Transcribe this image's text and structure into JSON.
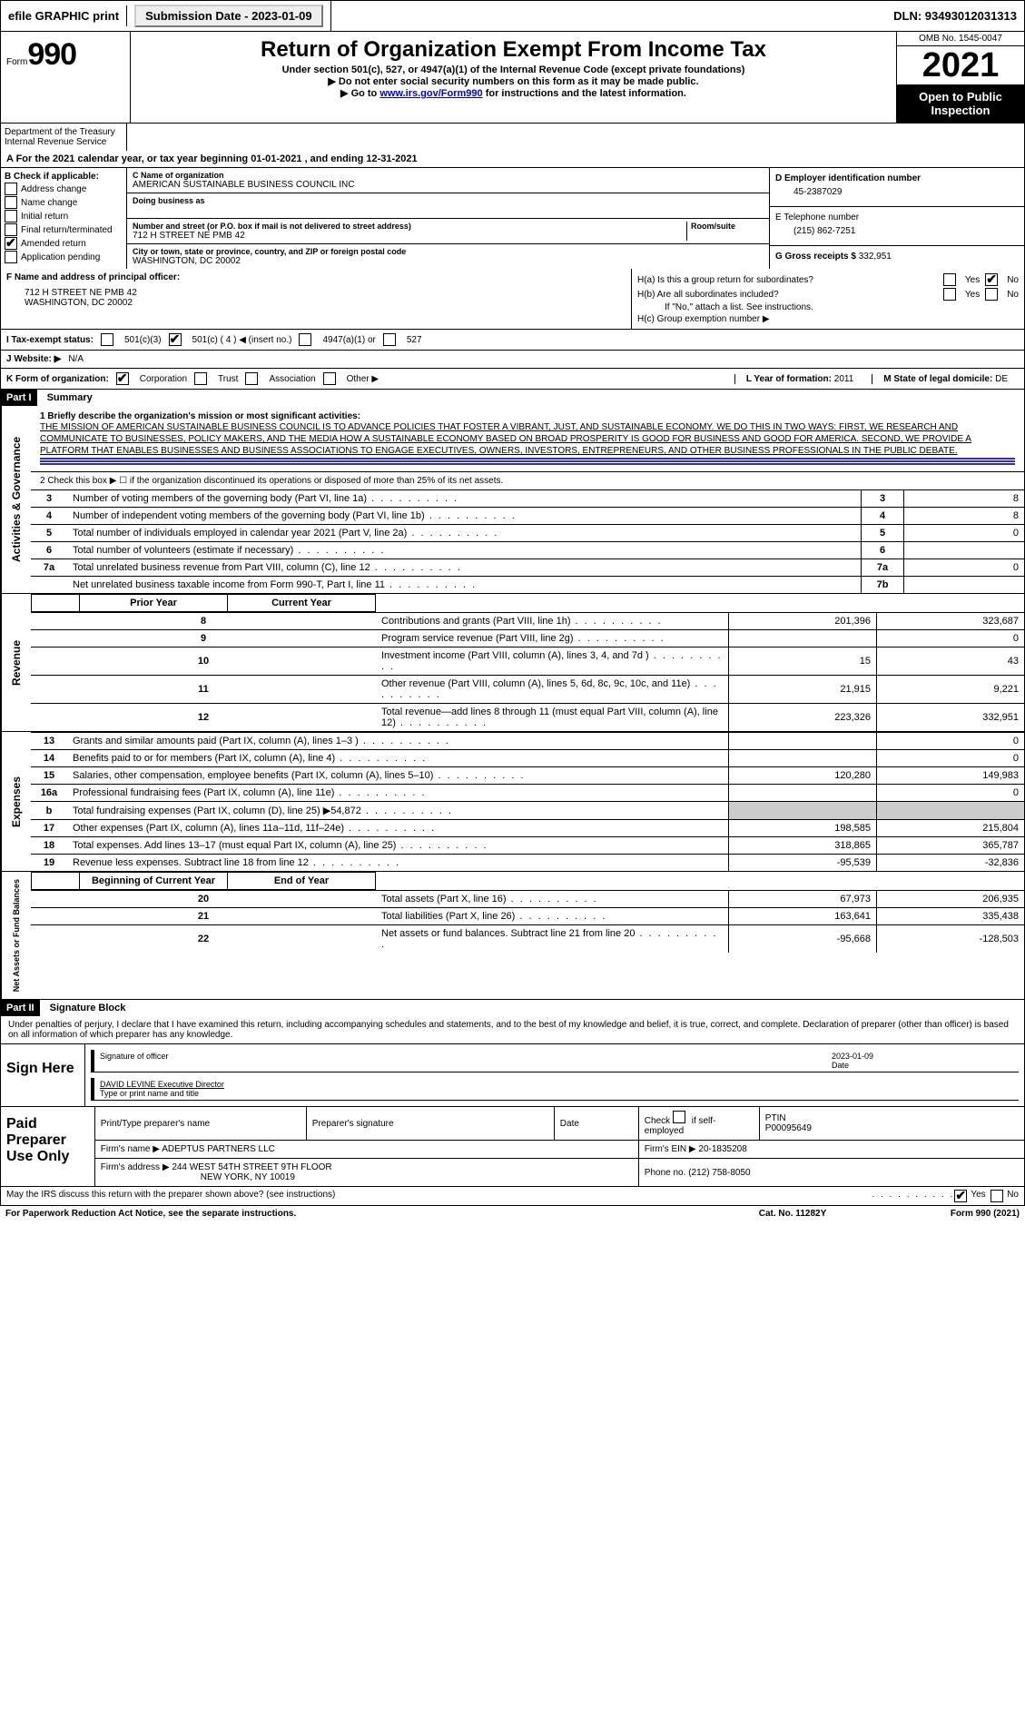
{
  "top_bar": {
    "efile": "efile GRAPHIC print",
    "submission_date": "Submission Date - 2023-01-09",
    "dln": "DLN: 93493012031313"
  },
  "header": {
    "form_label": "Form",
    "form_number": "990",
    "title": "Return of Organization Exempt From Income Tax",
    "subline": "Under section 501(c), 527, or 4947(a)(1) of the Internal Revenue Code (except private foundations)",
    "noshare": "▶ Do not enter social security numbers on this form as it may be made public.",
    "goto_pre": "▶ Go to ",
    "goto_link": "www.irs.gov/Form990",
    "goto_post": " for instructions and the latest information.",
    "omb": "OMB No. 1545-0047",
    "year": "2021",
    "inspection": "Open to Public Inspection",
    "dept": "Department of the Treasury Internal Revenue Service"
  },
  "line_a": "A For the 2021 calendar year, or tax year beginning 01-01-2021   , and ending 12-31-2021",
  "col_b": {
    "label": "B Check if applicable:",
    "items": [
      "Address change",
      "Name change",
      "Initial return",
      "Final return/terminated",
      "Amended return",
      "Application pending"
    ],
    "checked_idx": 4
  },
  "col_c": {
    "name_label": "C Name of organization",
    "name": "AMERICAN SUSTAINABLE BUSINESS COUNCIL INC",
    "dba_label": "Doing business as",
    "street_label": "Number and street (or P.O. box if mail is not delivered to street address)",
    "street": "712 H STREET NE PMB 42",
    "room_label": "Room/suite",
    "city_label": "City or town, state or province, country, and ZIP or foreign postal code",
    "city": "WASHINGTON, DC  20002"
  },
  "col_dg": {
    "d_label": "D Employer identification number",
    "d_val": "45-2387029",
    "e_label": "E Telephone number",
    "e_val": "(215) 862-7251",
    "g_label": "G Gross receipts $",
    "g_val": "332,951"
  },
  "f": {
    "label": "F  Name and address of principal officer:",
    "line1": "712 H STREET NE PMB 42",
    "line2": "WASHINGTON, DC  20002"
  },
  "h": {
    "ha": "H(a)  Is this a group return for subordinates?",
    "hb": "H(b)  Are all subordinates included?",
    "hnote": "If \"No,\" attach a list. See instructions.",
    "hc": "H(c)  Group exemption number ▶",
    "yes": "Yes",
    "no": "No"
  },
  "row_i": {
    "label": "I   Tax-exempt status:",
    "o501c3": "501(c)(3)",
    "o501c": "501(c) ( 4 ) ◀ (insert no.)",
    "o4947": "4947(a)(1) or",
    "o527": "527"
  },
  "row_j": {
    "label": "J   Website: ▶",
    "val": "N/A"
  },
  "row_k": {
    "label": "K Form of organization:",
    "opts": [
      "Corporation",
      "Trust",
      "Association",
      "Other ▶"
    ],
    "l_label": "L Year of formation:",
    "l_val": "2011",
    "m_label": "M State of legal domicile:",
    "m_val": "DE"
  },
  "parts": {
    "p1": "Part I",
    "p1t": "Summary",
    "p2": "Part II",
    "p2t": "Signature Block"
  },
  "vtabs": {
    "ag": "Activities & Governance",
    "rev": "Revenue",
    "exp": "Expenses",
    "nab": "Net Assets or Fund Balances"
  },
  "mission": {
    "intro": "1   Briefly describe the organization's mission or most significant activities:",
    "text": "THE MISSION OF AMERICAN SUSTAINABLE BUSINESS COUNCIL IS TO ADVANCE POLICIES THAT FOSTER A VIBRANT, JUST, AND SUSTAINABLE ECONOMY. WE DO THIS IN TWO WAYS: FIRST, WE RESEARCH AND COMMUNICATE TO BUSINESSES, POLICY MAKERS, AND THE MEDIA HOW A SUSTAINABLE ECONOMY BASED ON BROAD PROSPERITY IS GOOD FOR BUSINESS AND GOOD FOR AMERICA. SECOND, WE PROVIDE A PLATFORM THAT ENABLES BUSINESSES AND BUSINESS ASSOCIATIONS TO ENGAGE EXECUTIVES, OWNERS, INVESTORS, ENTREPRENEURS, AND OTHER BUSINESS PROFESSIONALS IN THE PUBLIC DEBATE."
  },
  "line2": "2   Check this box ▶ ☐  if the organization discontinued its operations or disposed of more than 25% of its net assets.",
  "gov_rows": [
    {
      "n": "3",
      "d": "Number of voting members of the governing body (Part VI, line 1a)",
      "box": "3",
      "v": "8"
    },
    {
      "n": "4",
      "d": "Number of independent voting members of the governing body (Part VI, line 1b)",
      "box": "4",
      "v": "8"
    },
    {
      "n": "5",
      "d": "Total number of individuals employed in calendar year 2021 (Part V, line 2a)",
      "box": "5",
      "v": "0"
    },
    {
      "n": "6",
      "d": "Total number of volunteers (estimate if necessary)",
      "box": "6",
      "v": ""
    },
    {
      "n": "7a",
      "d": "Total unrelated business revenue from Part VIII, column (C), line 12",
      "box": "7a",
      "v": "0"
    },
    {
      "n": "",
      "d": "Net unrelated business taxable income from Form 990-T, Part I, line 11",
      "box": "7b",
      "v": ""
    }
  ],
  "rev_header": {
    "py": "Prior Year",
    "cy": "Current Year"
  },
  "rev_rows": [
    {
      "n": "8",
      "d": "Contributions and grants (Part VIII, line 1h)",
      "py": "201,396",
      "cy": "323,687"
    },
    {
      "n": "9",
      "d": "Program service revenue (Part VIII, line 2g)",
      "py": "",
      "cy": "0"
    },
    {
      "n": "10",
      "d": "Investment income (Part VIII, column (A), lines 3, 4, and 7d )",
      "py": "15",
      "cy": "43"
    },
    {
      "n": "11",
      "d": "Other revenue (Part VIII, column (A), lines 5, 6d, 8c, 9c, 10c, and 11e)",
      "py": "21,915",
      "cy": "9,221"
    },
    {
      "n": "12",
      "d": "Total revenue—add lines 8 through 11 (must equal Part VIII, column (A), line 12)",
      "py": "223,326",
      "cy": "332,951"
    }
  ],
  "exp_rows": [
    {
      "n": "13",
      "d": "Grants and similar amounts paid (Part IX, column (A), lines 1–3 )",
      "py": "",
      "cy": "0"
    },
    {
      "n": "14",
      "d": "Benefits paid to or for members (Part IX, column (A), line 4)",
      "py": "",
      "cy": "0"
    },
    {
      "n": "15",
      "d": "Salaries, other compensation, employee benefits (Part IX, column (A), lines 5–10)",
      "py": "120,280",
      "cy": "149,983"
    },
    {
      "n": "16a",
      "d": "Professional fundraising fees (Part IX, column (A), line 11e)",
      "py": "",
      "cy": "0"
    },
    {
      "n": "b",
      "d": "Total fundraising expenses (Part IX, column (D), line 25) ▶54,872",
      "py": "GRAY",
      "cy": "GRAY"
    },
    {
      "n": "17",
      "d": "Other expenses (Part IX, column (A), lines 11a–11d, 11f–24e)",
      "py": "198,585",
      "cy": "215,804"
    },
    {
      "n": "18",
      "d": "Total expenses. Add lines 13–17 (must equal Part IX, column (A), line 25)",
      "py": "318,865",
      "cy": "365,787"
    },
    {
      "n": "19",
      "d": "Revenue less expenses. Subtract line 18 from line 12",
      "py": "-95,539",
      "cy": "-32,836"
    }
  ],
  "na_header": {
    "by": "Beginning of Current Year",
    "ey": "End of Year"
  },
  "na_rows": [
    {
      "n": "20",
      "d": "Total assets (Part X, line 16)",
      "py": "67,973",
      "cy": "206,935"
    },
    {
      "n": "21",
      "d": "Total liabilities (Part X, line 26)",
      "py": "163,641",
      "cy": "335,438"
    },
    {
      "n": "22",
      "d": "Net assets or fund balances. Subtract line 21 from line 20",
      "py": "-95,668",
      "cy": "-128,503"
    }
  ],
  "decl": "Under penalties of perjury, I declare that I have examined this return, including accompanying schedules and statements, and to the best of my knowledge and belief, it is true, correct, and complete. Declaration of preparer (other than officer) is based on all information of which preparer has any knowledge.",
  "sign": {
    "here": "Sign Here",
    "sig_label": "Signature of officer",
    "date_label": "Date",
    "date_val": "2023-01-09",
    "name": "DAVID LEVINE  Executive Director",
    "name_label": "Type or print name and title"
  },
  "prep": {
    "label": "Paid Preparer Use Only",
    "h1": "Print/Type preparer's name",
    "h2": "Preparer's signature",
    "h3": "Date",
    "h4_pre": "Check",
    "h4_post": "if self-employed",
    "h5": "PTIN",
    "ptin": "P00095649",
    "firm_label": "Firm's name      ▶",
    "firm": "ADEPTUS PARTNERS LLC",
    "ein_label": "Firm's EIN ▶",
    "ein": "20-1835208",
    "addr_label": "Firm's address ▶",
    "addr1": "244 WEST 54TH STREET 9TH FLOOR",
    "addr2": "NEW YORK, NY  10019",
    "phone_label": "Phone no.",
    "phone": "(212) 758-8050"
  },
  "bottom": {
    "q": "May the IRS discuss this return with the preparer shown above? (see instructions)",
    "yes": "Yes",
    "no": "No"
  },
  "footer": {
    "left": "For Paperwork Reduction Act Notice, see the separate instructions.",
    "center": "Cat. No. 11282Y",
    "right": "Form 990 (2021)"
  }
}
